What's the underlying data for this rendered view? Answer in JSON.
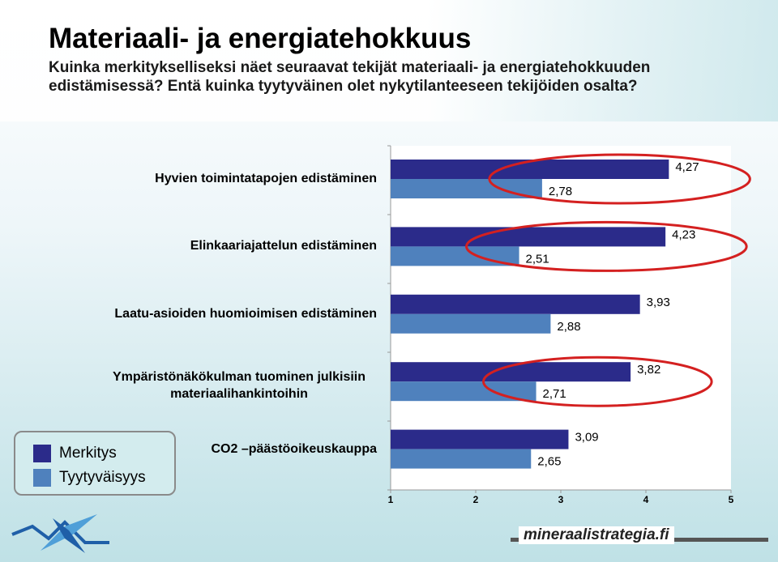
{
  "header": {
    "title": "Materiaali- ja energiatehokkuus",
    "subtitle": "Kuinka merkitykselliseksi näet seuraavat tekijät materiaali- ja energiatehokkuuden edistämisessä? Entä kuinka tyytyväinen olet nykytilanteeseen tekijöiden osalta?"
  },
  "chart_data": {
    "type": "bar",
    "orientation": "horizontal",
    "categories": [
      "Hyvien toimintatapojen edistäminen",
      "Elinkaariajattelun edistäminen",
      "Laatu-asioiden huomioimisen edistäminen",
      "Ympäristönäkökulman tuominen julkisiin materiaalihankintoihin",
      "CO2 –päästöoikeuskauppa"
    ],
    "series": [
      {
        "name": "Merkitys",
        "color": "#2b2b8a",
        "values": [
          4.27,
          4.23,
          3.93,
          3.82,
          3.09
        ],
        "labels": [
          "4,27",
          "4,23",
          "3,93",
          "3,82",
          "3,09"
        ]
      },
      {
        "name": "Tyytyväisyys",
        "color": "#4f81bd",
        "values": [
          2.78,
          2.51,
          2.88,
          2.71,
          2.65
        ],
        "labels": [
          "2,78",
          "2,51",
          "2,88",
          "2,71",
          "2,65"
        ]
      }
    ],
    "xlim": [
      1,
      5
    ],
    "xticks": [
      "1",
      "2",
      "3",
      "4",
      "5"
    ],
    "highlighted_categories": [
      0,
      1,
      3
    ],
    "highlight_color": "#d42020",
    "legend_position": "bottom-left"
  },
  "footer": {
    "brand": "mineraalistrategia.fi"
  }
}
